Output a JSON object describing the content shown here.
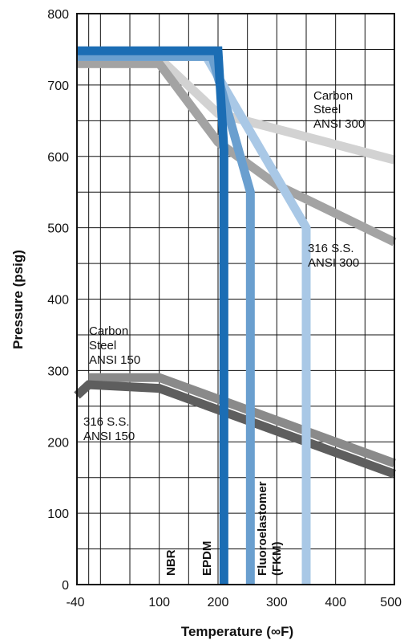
{
  "chart_data": {
    "type": "line",
    "xlabel": "Temperature (∞F)",
    "ylabel": "Pressure (psig)",
    "xlim": [
      -40,
      500
    ],
    "ylim": [
      0,
      800
    ],
    "x_ticks": [
      "-40",
      "100",
      "200",
      "300",
      "400",
      "500"
    ],
    "x_tick_values": [
      -40,
      100,
      200,
      300,
      400,
      500
    ],
    "y_ticks": [
      "0",
      "100",
      "200",
      "300",
      "400",
      "500",
      "600",
      "700",
      "800"
    ],
    "y_tick_values": [
      0,
      100,
      200,
      300,
      400,
      500,
      600,
      700,
      800
    ],
    "grid": true,
    "series": [
      {
        "name": "Carbon Steel ANSI 300",
        "color": "#d2d2d2",
        "points": [
          [
            -40,
            730
          ],
          [
            110,
            730
          ],
          [
            200,
            660
          ],
          [
            500,
            595
          ]
        ]
      },
      {
        "name": "316 S.S. ANSI 300",
        "color": "#a3a3a3",
        "points": [
          [
            -40,
            730
          ],
          [
            100,
            730
          ],
          [
            200,
            620
          ],
          [
            300,
            560
          ],
          [
            500,
            480
          ]
        ]
      },
      {
        "name": "Carbon Steel ANSI 150",
        "color": "#8a8a8a",
        "points": [
          [
            -20,
            290
          ],
          [
            100,
            290
          ],
          [
            500,
            170
          ]
        ]
      },
      {
        "name": "316 S.S. ANSI 150",
        "color": "#5e5e5e",
        "points": [
          [
            -40,
            265
          ],
          [
            -20,
            280
          ],
          [
            100,
            275
          ],
          [
            500,
            155
          ]
        ]
      },
      {
        "name": "Fluoroelastomer (FKM)",
        "color": "#a9c8e6",
        "points": [
          [
            -40,
            740
          ],
          [
            180,
            740
          ],
          [
            350,
            500
          ],
          [
            350,
            0
          ]
        ]
      },
      {
        "name": "EPDM",
        "color": "#6a9fcf",
        "points": [
          [
            -40,
            740
          ],
          [
            190,
            740
          ],
          [
            255,
            550
          ],
          [
            255,
            0
          ]
        ]
      },
      {
        "name": "NBR",
        "color": "#1b6db4",
        "points": [
          [
            -40,
            748
          ],
          [
            200,
            748
          ],
          [
            210,
            610
          ],
          [
            210,
            0
          ]
        ]
      }
    ],
    "annotations": {
      "cs300": [
        "Carbon",
        "Steel",
        "ANSI 300"
      ],
      "ss300": [
        "316 S.S.",
        "ANSI 300"
      ],
      "cs150": [
        "Carbon",
        "Steel",
        "ANSI 150"
      ],
      "ss150": [
        "316 S.S.",
        "ANSI 150"
      ],
      "nbr": "NBR",
      "epdm": "EPDM",
      "fkm": [
        "Fluoroelastomer",
        "(FKM)"
      ]
    }
  }
}
